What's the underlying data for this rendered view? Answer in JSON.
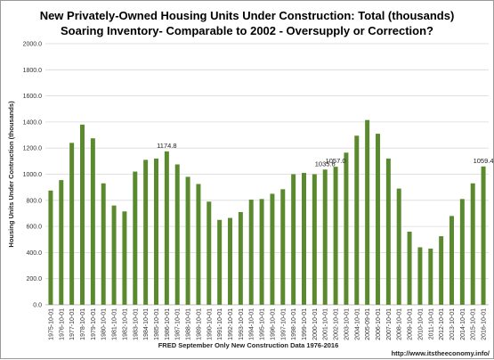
{
  "chart_data": {
    "type": "bar",
    "title": "New Privately-Owned Housing Units Under Construction: Total (thousands)",
    "subtitle": "Soaring Inventory- Comparable to 2002  - Oversupply or Correction?",
    "ylabel": "Housing Units Under Contruction (thousands)",
    "xlabel": "FRED September Only New Construction Data 1976-2016",
    "source": "http://www.itstheeconomy.info/",
    "ylim": [
      0,
      2000
    ],
    "yticks": [
      "0.0",
      "200.0",
      "400.0",
      "600.0",
      "800.0",
      "1000.0",
      "1200.0",
      "1400.0",
      "1600.0",
      "1800.0",
      "2000.0"
    ],
    "grid": true,
    "legend": "none",
    "bar_color": "#5b8a2e",
    "categories": [
      "1975-10-01",
      "1976-10-01",
      "1977-10-01",
      "1978-10-01",
      "1979-10-01",
      "1980-10-01",
      "1981-10-01",
      "1982-10-01",
      "1983-10-01",
      "1984-10-01",
      "1985-10-01",
      "1986-10-01",
      "1987-10-01",
      "1988-10-01",
      "1989-10-01",
      "1990-10-01",
      "1991-10-01",
      "1992-10-01",
      "1993-10-01",
      "1994-10-01",
      "1995-10-01",
      "1996-10-01",
      "1997-10-01",
      "1998-10-01",
      "1999-10-01",
      "2000-10-01",
      "2001-10-01",
      "2002-10-01",
      "2003-10-01",
      "2004-10-01",
      "2005-09-01",
      "2006-10-01",
      "2007-10-01",
      "2008-10-01",
      "2009-10-01",
      "2010-10-01",
      "2011-10-01",
      "2012-10-01",
      "2013-10-01",
      "2014-10-01",
      "2015-10-01",
      "2016-10-01"
    ],
    "values": [
      875,
      955,
      1240,
      1380,
      1275,
      930,
      760,
      715,
      1020,
      1110,
      1120,
      1174.8,
      1075,
      980,
      925,
      790,
      650,
      665,
      710,
      805,
      810,
      850,
      885,
      1000,
      1010,
      1000,
      1035.6,
      1057.0,
      1165,
      1295,
      1415,
      1310,
      1120,
      890,
      560,
      440,
      430,
      525,
      680,
      810,
      930,
      1059.4
    ],
    "annotations": [
      {
        "category": "1986-10-01",
        "text": "1174.8"
      },
      {
        "category": "2001-10-01",
        "text": "1035.6"
      },
      {
        "category": "2002-10-01",
        "text": "1057.0"
      },
      {
        "category": "2016-10-01",
        "text": "1059.4"
      }
    ]
  }
}
